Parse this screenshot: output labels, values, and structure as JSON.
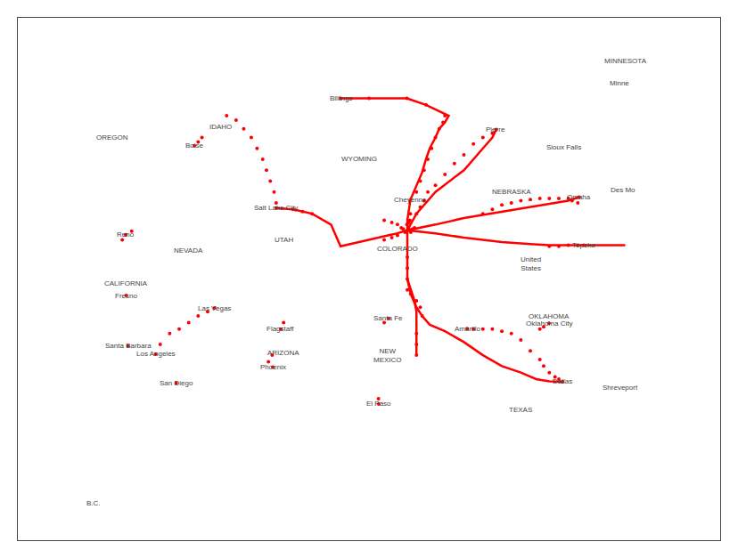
{
  "chart_data": {
    "type": "line",
    "xlim": [
      -125.5,
      -88.5
    ],
    "ylim": [
      25.5,
      49.5
    ],
    "tick_labels": false,
    "grid": false,
    "series": [
      {
        "type": "line",
        "color": "#ff0000",
        "x": [
          -104.98,
          -104.98,
          -104.82,
          -104.5,
          -104.2,
          -104.0,
          -103.8,
          -103.5,
          -103.3,
          -103.0,
          -102.8,
          -104.0,
          -105.0,
          -107.0,
          -108.5
        ],
        "values": [
          39.74,
          40.2,
          41.14,
          41.8,
          42.4,
          43.0,
          43.5,
          44.0,
          44.4,
          44.7,
          45.0,
          45.5,
          45.8,
          45.8,
          45.8
        ]
      },
      {
        "type": "line",
        "color": "#ff0000",
        "x": [
          -104.98,
          -104.5,
          -103.5,
          -102.0,
          -101.0,
          -100.5,
          -100.3
        ],
        "values": [
          39.74,
          40.5,
          41.5,
          42.5,
          43.5,
          44.0,
          44.37
        ]
      },
      {
        "type": "line",
        "color": "#ff0000",
        "x": [
          -104.98,
          -103.5,
          -102.0,
          -100.0,
          -98.0,
          -96.5,
          -95.93
        ],
        "values": [
          39.74,
          40.0,
          40.3,
          40.6,
          40.9,
          41.1,
          41.26
        ]
      },
      {
        "type": "line",
        "color": "#ff0000",
        "x": [
          -104.98,
          -103.5,
          -102.0,
          -100.0,
          -98.5,
          -97.5,
          -96.5,
          -95.9,
          -95.68
        ],
        "values": [
          39.74,
          39.6,
          39.4,
          39.2,
          39.1,
          39.05,
          39.05,
          39.05,
          39.05
        ]
      },
      {
        "type": "line",
        "color": "#ff0000",
        "x": [
          -95.68,
          -94.5,
          -93.5
        ],
        "values": [
          39.05,
          39.05,
          39.05
        ]
      },
      {
        "type": "line",
        "color": "#ff0000",
        "x": [
          -104.98,
          -104.98,
          -104.98,
          -104.8,
          -104.5,
          -104.2,
          -103.8,
          -103.0,
          -102.0,
          -101.0,
          -100.0,
          -99.0,
          -98.2,
          -97.5,
          -97.0,
          -96.8
        ],
        "values": [
          39.74,
          38.5,
          37.5,
          36.8,
          36.2,
          35.8,
          35.4,
          35.1,
          34.6,
          34.0,
          33.5,
          33.2,
          32.9,
          32.8,
          32.78,
          32.78
        ]
      },
      {
        "type": "line",
        "color": "#ff0000",
        "x": [
          -104.98,
          -104.8,
          -104.6,
          -104.5,
          -104.5,
          -104.5
        ],
        "values": [
          37.5,
          37.0,
          36.5,
          36.0,
          35.0,
          34.0
        ]
      },
      {
        "type": "line",
        "color": "#ff0000",
        "x": [
          -104.98,
          -105.5,
          -106.0,
          -106.5,
          -107.0,
          -107.5,
          -108.0,
          -108.5,
          -109.0,
          -110.0,
          -111.0,
          -111.89
        ],
        "values": [
          39.74,
          39.6,
          39.5,
          39.4,
          39.3,
          39.2,
          39.1,
          39.0,
          40.0,
          40.5,
          40.7,
          40.76
        ]
      },
      {
        "type": "scatter",
        "marker": "circle",
        "color": "#ff0000",
        "x": [
          -104.98,
          -104.9,
          -105.0,
          -105.1,
          -104.8,
          -105.2,
          -104.7,
          -105.3,
          -104.6,
          -105.0,
          -104.9,
          -104.85,
          -104.82,
          -104.82,
          -104.5,
          -104.3,
          -104.1,
          -103.9,
          -103.7,
          -103.5,
          -103.3,
          -103.1,
          -103.0,
          -104.0,
          -105.0,
          -107.0,
          -108.5,
          -104.5,
          -104.3,
          -104.1,
          -103.9,
          -103.5,
          -103.0,
          -102.5,
          -102.0,
          -101.5,
          -101.0,
          -100.5,
          -100.3,
          -95.93,
          -96.0,
          -96.3,
          -95.68,
          -96.0,
          -96.5,
          -97.0,
          -97.5,
          -96.8,
          -97.0,
          -97.2,
          -97.5,
          -97.8,
          -98.0,
          -98.5,
          -99.0,
          -99.5,
          -100.0,
          -100.5,
          -101.0,
          -101.5,
          -101.83,
          -104.98,
          -104.98,
          -104.98,
          -104.98,
          -104.8,
          -104.5,
          -104.3,
          -104.2,
          -104.5,
          -104.5,
          -104.5,
          -105.5,
          -105.8,
          -106.2,
          -105.5,
          -105.8,
          -106.2,
          -110.0,
          -110.5,
          -111.0,
          -111.89,
          -111.89,
          -112.0,
          -112.2,
          -112.4,
          -112.6,
          -112.9,
          -113.2,
          -113.6,
          -114.0,
          -114.5,
          -115.14,
          -115.5,
          -116.0,
          -116.5,
          -117.0,
          -117.5,
          -118.0,
          -118.24,
          -117.16,
          -119.7,
          -119.79,
          -119.81,
          -112.07,
          -112.3,
          -112.1,
          -111.65,
          -111.5,
          -106.49,
          -106.5,
          -105.97,
          -106.2,
          -97.52,
          -97.8,
          -98.0,
          -116.2,
          -116.0,
          -115.8,
          -119.81,
          -120.0,
          -119.5,
          -101.0,
          -100.5,
          -100.0,
          -99.5,
          -99.0,
          -98.5,
          -98.0,
          -97.5,
          -97.0,
          -96.5
        ],
        "values": [
          39.74,
          39.8,
          39.7,
          39.65,
          39.65,
          39.8,
          39.8,
          39.85,
          39.85,
          40.0,
          40.1,
          40.2,
          40.5,
          41.14,
          41.5,
          42.0,
          42.5,
          43.0,
          43.5,
          44.0,
          44.4,
          44.7,
          45.0,
          45.5,
          45.8,
          45.8,
          45.8,
          40.5,
          40.8,
          41.1,
          41.5,
          41.8,
          42.3,
          42.8,
          43.2,
          43.7,
          44.0,
          44.2,
          44.37,
          41.26,
          41.0,
          41.1,
          39.05,
          39.05,
          39.05,
          39.0,
          39.0,
          32.78,
          32.9,
          33.0,
          33.2,
          33.5,
          33.8,
          34.2,
          34.7,
          35.0,
          35.1,
          35.2,
          35.2,
          35.2,
          35.22,
          38.5,
          38.0,
          37.5,
          37.0,
          36.8,
          36.5,
          36.2,
          35.8,
          35.0,
          34.5,
          34.0,
          39.5,
          39.4,
          39.3,
          40.0,
          40.1,
          40.2,
          40.5,
          40.6,
          40.7,
          40.76,
          41.0,
          41.5,
          42.0,
          42.5,
          43.0,
          43.5,
          44.0,
          44.4,
          44.8,
          45.0,
          36.17,
          36.0,
          35.8,
          35.5,
          35.2,
          35.0,
          34.5,
          34.05,
          32.72,
          34.42,
          36.74,
          39.53,
          33.45,
          33.7,
          34.0,
          35.2,
          35.5,
          31.76,
          32.0,
          35.69,
          35.5,
          35.47,
          35.3,
          35.2,
          43.62,
          43.8,
          44.0,
          39.53,
          39.3,
          39.7,
          40.5,
          40.7,
          40.9,
          41.0,
          41.1,
          41.15,
          41.2,
          41.2,
          41.2,
          41.2
        ]
      }
    ],
    "annotations": [
      {
        "text": "Billings",
        "x": -108.5,
        "y": 45.78
      },
      {
        "text": "Pierre",
        "x": -100.35,
        "y": 44.37
      },
      {
        "text": "Sioux Falls",
        "x": -96.73,
        "y": 43.55
      },
      {
        "text": "Omaha",
        "x": -95.93,
        "y": 41.26
      },
      {
        "text": "Des Mo",
        "x": -93.62,
        "y": 41.6
      },
      {
        "text": "Topeka",
        "x": -95.68,
        "y": 39.05
      },
      {
        "text": "Oklahoma City",
        "x": -97.52,
        "y": 35.47
      },
      {
        "text": "Dallas",
        "x": -96.8,
        "y": 32.78
      },
      {
        "text": "Shreveport",
        "x": -93.75,
        "y": 32.52
      },
      {
        "text": "El Paso",
        "x": -106.49,
        "y": 31.76
      },
      {
        "text": "Santa Fe",
        "x": -105.97,
        "y": 35.69
      },
      {
        "text": "Amarillo",
        "x": -101.83,
        "y": 35.22
      },
      {
        "text": "Phoenix",
        "x": -112.07,
        "y": 33.45
      },
      {
        "text": "Flagstaff",
        "x": -111.65,
        "y": 35.2
      },
      {
        "text": "Las Vegas",
        "x": -115.14,
        "y": 36.17
      },
      {
        "text": "Reno",
        "x": -119.81,
        "y": 39.53
      },
      {
        "text": "Salt Lake City",
        "x": -111.89,
        "y": 40.76
      },
      {
        "text": "Boise",
        "x": -116.2,
        "y": 43.62
      },
      {
        "text": "Cheyenne",
        "x": -104.82,
        "y": 41.14
      },
      {
        "text": "Fresno",
        "x": -119.79,
        "y": 36.74
      },
      {
        "text": "Santa Barbara",
        "x": -119.7,
        "y": 34.42
      },
      {
        "text": "Los Angeles",
        "x": -118.24,
        "y": 34.05
      },
      {
        "text": "San Diego",
        "x": -117.16,
        "y": 32.72
      },
      {
        "text": "B.C.",
        "x": -121.5,
        "y": 27.2
      },
      {
        "text": "OREGON",
        "x": -120.5,
        "y": 44.0
      },
      {
        "text": "IDAHO",
        "x": -114.8,
        "y": 44.5
      },
      {
        "text": "WYOMING",
        "x": -107.5,
        "y": 43.0
      },
      {
        "text": "NEVADA",
        "x": -116.5,
        "y": 38.8
      },
      {
        "text": "UTAH",
        "x": -111.5,
        "y": 39.3
      },
      {
        "text": "COLORADO",
        "x": -105.5,
        "y": 38.9
      },
      {
        "text": "CALIFORNIA",
        "x": -119.8,
        "y": 37.3
      },
      {
        "text": "ARIZONA",
        "x": -111.5,
        "y": 34.1
      },
      {
        "text": "NEW\nMEXICO",
        "x": -106.0,
        "y": 34.0
      },
      {
        "text": "NEBRASKA",
        "x": -99.5,
        "y": 41.5
      },
      {
        "text": "OKLAHOMA",
        "x": -97.5,
        "y": 35.8
      },
      {
        "text": "TEXAS",
        "x": -99.0,
        "y": 31.5
      },
      {
        "text": "MINNESOTA",
        "x": -93.5,
        "y": 47.5
      },
      {
        "text": "Minne",
        "x": -93.8,
        "y": 46.5
      },
      {
        "text": "United\nStates",
        "x": -98.5,
        "y": 38.2
      }
    ]
  }
}
